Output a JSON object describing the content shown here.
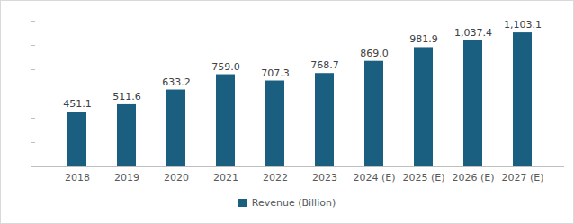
{
  "chart_data": {
    "type": "bar",
    "categories": [
      "2018",
      "2019",
      "2020",
      "2021",
      "2022",
      "2023",
      "2024 (E)",
      "2025 (E)",
      "2026 (E)",
      "2027 (E)"
    ],
    "series": [
      {
        "name": "Revenue (Billion)",
        "color": "#1b5f80",
        "values": [
          451.1,
          511.6,
          633.2,
          759.0,
          707.3,
          768.7,
          869.0,
          981.9,
          1037.4,
          1103.1
        ],
        "value_labels": [
          "451.1",
          "511.6",
          "633.2",
          "759.0",
          "707.3",
          "768.7",
          "869.0",
          "981.9",
          "1,037.4",
          "1,103.1"
        ]
      }
    ],
    "ylim": [
      0,
      1200
    ],
    "yticks": [
      0,
      200,
      400,
      600,
      800,
      1000,
      1200
    ],
    "grid": false,
    "data_labels": true,
    "tick_labels": "x",
    "legend": "bottom"
  }
}
